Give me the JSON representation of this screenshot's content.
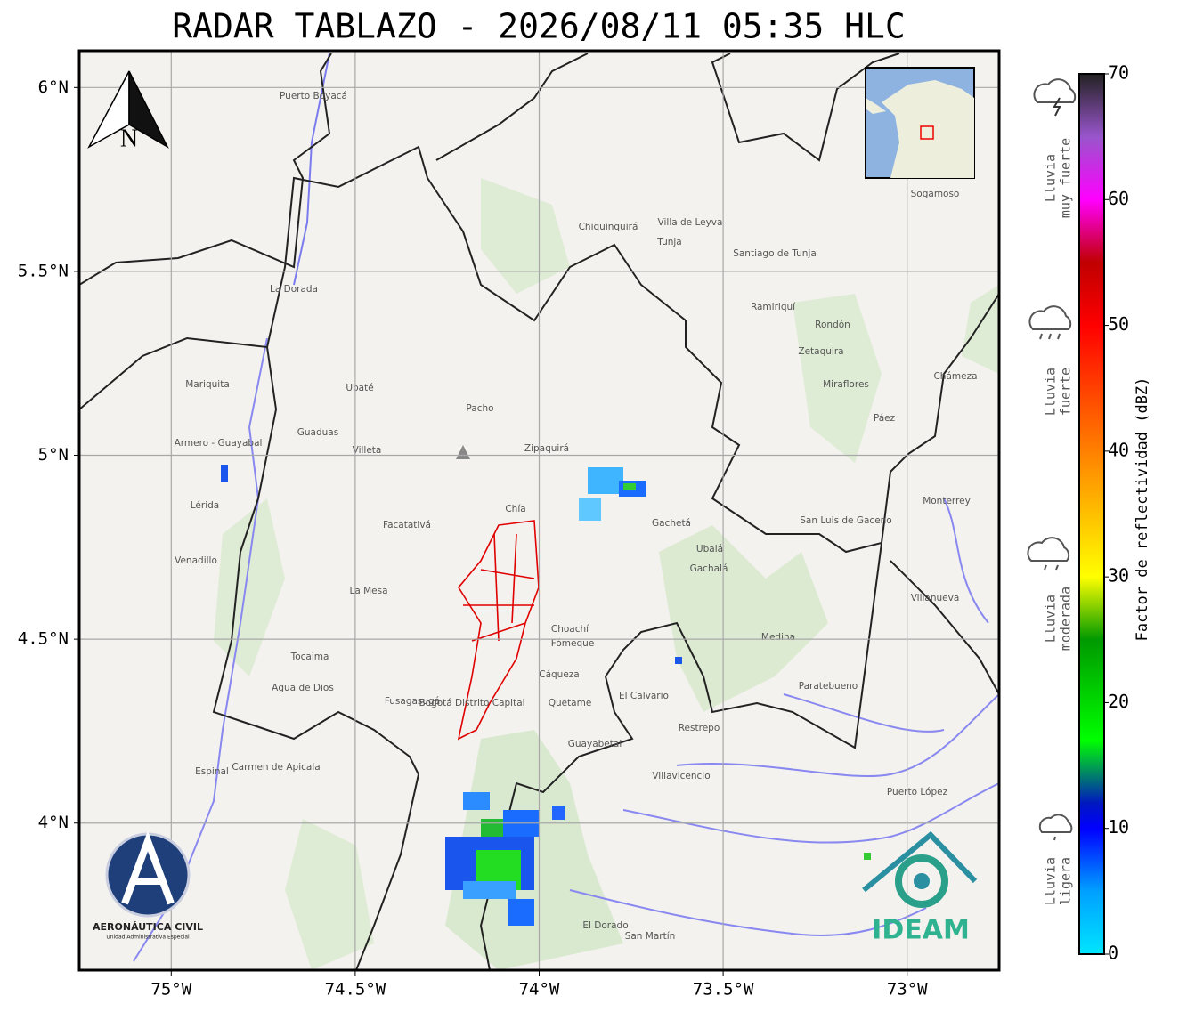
{
  "title": "RADAR TABLAZO - 2026/08/11 05:35 HLC",
  "map": {
    "xlim": [
      -75.25,
      -72.75
    ],
    "ylim": [
      3.6,
      6.1
    ],
    "xticks": [
      {
        "value": -75,
        "label": "75°W"
      },
      {
        "value": -74.5,
        "label": "74.5°W"
      },
      {
        "value": -74,
        "label": "74°W"
      },
      {
        "value": -73.5,
        "label": "73.5°W"
      },
      {
        "value": -73,
        "label": "73°W"
      }
    ],
    "yticks": [
      {
        "value": 4,
        "label": "4°N"
      },
      {
        "value": 4.5,
        "label": "4.5°N"
      },
      {
        "value": 5,
        "label": "5°N"
      },
      {
        "value": 5.5,
        "label": "5.5°N"
      },
      {
        "value": 6,
        "label": "6°N"
      }
    ],
    "grid": true,
    "north_label": "N",
    "place_labels": [
      "Sogamoso",
      "Villa de Leyva",
      "Tunja",
      "Santiago de Tunja",
      "Chiquinquirá",
      "Zipaquirá",
      "Chía",
      "Facatativá",
      "Fusagasugá",
      "Villavicencio",
      "Puerto Boyacá",
      "La Dorada",
      "Mariquita",
      "Armero - Guayabal",
      "Guaduas",
      "Villeta",
      "Pacho",
      "Ubaté",
      "Gachetá",
      "Ubalá",
      "Gachalá",
      "Medina",
      "Paratebueno",
      "Restrepo",
      "El Calvario",
      "Choachí",
      "Fómeque",
      "Cáqueza",
      "Quetame",
      "Guayabetal",
      "Puerto López",
      "San Martín",
      "El Dorado",
      "Lérida",
      "Venadillo",
      "Espinal",
      "Carmen de Apicala",
      "Agua de Dios",
      "Tocaima",
      "La Mesa",
      "Miraflores",
      "Zetaquira",
      "Rondón",
      "Ramiriquí",
      "Chámeza",
      "Monterrey",
      "Villanueva",
      "San Luis de Gaceno",
      "Páez",
      "Bogotá Distrito Capital"
    ]
  },
  "colorbar": {
    "label": "Factor de reflectividad (dBZ)",
    "lim": [
      0,
      70
    ],
    "ticks": [
      0,
      10,
      20,
      30,
      40,
      50,
      60,
      70
    ],
    "colormap": [
      {
        "value": 0,
        "color": "#00e5ff"
      },
      {
        "value": 5,
        "color": "#00a0ff"
      },
      {
        "value": 10,
        "color": "#0000ff"
      },
      {
        "value": 12,
        "color": "#0018c0"
      },
      {
        "value": 17,
        "color": "#00ff00"
      },
      {
        "value": 25,
        "color": "#009900"
      },
      {
        "value": 30,
        "color": "#ffff00"
      },
      {
        "value": 40,
        "color": "#ff8000"
      },
      {
        "value": 50,
        "color": "#ff0000"
      },
      {
        "value": 55,
        "color": "#c00000"
      },
      {
        "value": 60,
        "color": "#ff00ff"
      },
      {
        "value": 65,
        "color": "#9955cc"
      },
      {
        "value": 70,
        "color": "#222222"
      }
    ]
  },
  "rain_levels": [
    [
      "Lluvia",
      "muy fuerte"
    ],
    [
      "Lluvia",
      "fuerte"
    ],
    [
      "Lluvia",
      "moderada"
    ],
    [
      "Lluvia",
      "ligera"
    ]
  ],
  "logos": {
    "aerocivil": "AERONÁUTICA CIVIL",
    "aerocivil_sub": "Unidad Administrativa Especial",
    "ideam": "IDEAM"
  }
}
